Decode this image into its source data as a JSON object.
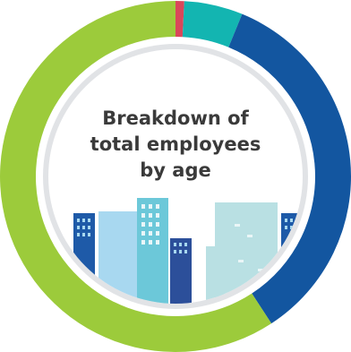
{
  "chart_data": {
    "type": "pie",
    "variant": "donut",
    "title_lines": [
      "Breakdown of",
      "total employees",
      "by age"
    ],
    "slices": [
      {
        "value": 0.8,
        "color": "#d9475a"
      },
      {
        "value": 5.4,
        "color": "#13b5b1"
      },
      {
        "value": 34.6,
        "color": "#1356a0"
      },
      {
        "value": 59.2,
        "color": "#9ccb3b"
      }
    ],
    "start_angle_deg": 0,
    "direction": "clockwise"
  },
  "colors": {
    "inner_ring": "#e1e3e6",
    "inner_disc": "#ffffff",
    "building_light_blue": "#a8d8f0",
    "building_sky": "#cfe9f7",
    "building_dark_blue": "#1e5aa8",
    "building_navy": "#2c4f9a",
    "building_teal": "#6cc8d9",
    "building_pale_teal": "#b9e0e3"
  },
  "illustration": "city-skyline"
}
